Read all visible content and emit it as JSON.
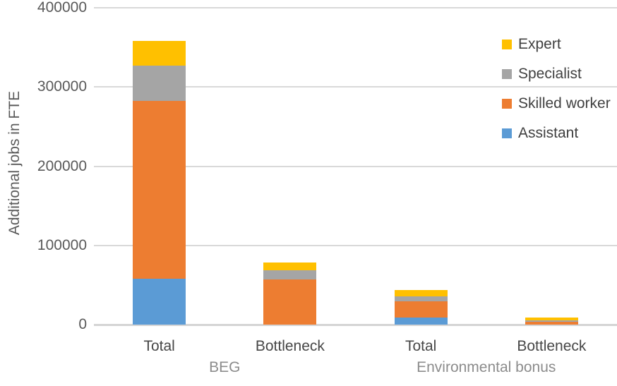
{
  "chart_data": {
    "type": "bar",
    "stacked": true,
    "ylabel": "Additional jobs in FTE",
    "ylim": [
      0,
      400000
    ],
    "yticks": [
      0,
      100000,
      200000,
      300000,
      400000
    ],
    "grid": true,
    "categories": [
      "Total",
      "Bottleneck",
      "Total",
      "Bottleneck"
    ],
    "group_labels": [
      {
        "label": "BEG",
        "categories": [
          0,
          1
        ]
      },
      {
        "label": "Environmental bonus",
        "categories": [
          2,
          3
        ]
      }
    ],
    "series": [
      {
        "name": "Assistant",
        "color": "#5B9BD5",
        "values": [
          58000,
          0,
          9000,
          0
        ]
      },
      {
        "name": "Skilled worker",
        "color": "#ED7D31",
        "values": [
          224000,
          57000,
          20000,
          3500
        ]
      },
      {
        "name": "Specialist",
        "color": "#A5A5A5",
        "values": [
          45000,
          12000,
          7000,
          2000
        ]
      },
      {
        "name": "Expert",
        "color": "#FFC000",
        "values": [
          31000,
          9000,
          8000,
          3500
        ]
      }
    ],
    "legend": {
      "position": "top-right",
      "entries": [
        "Expert",
        "Specialist",
        "Skilled worker",
        "Assistant"
      ]
    }
  }
}
